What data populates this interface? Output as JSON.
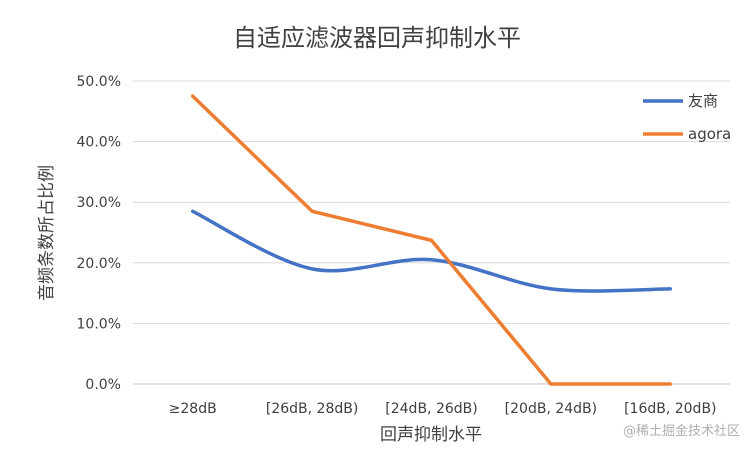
{
  "chart_data": {
    "type": "line",
    "title": "自适应滤波器回声抑制水平",
    "xlabel": "回声抑制水平",
    "ylabel": "音频条数所占比例",
    "categories": [
      "≥28dB",
      "[26dB, 28dB)",
      "[24dB, 26dB)",
      "[20dB, 24dB)",
      "[16dB, 20dB)"
    ],
    "yticks": [
      "0.0%",
      "10.0%",
      "20.0%",
      "30.0%",
      "40.0%",
      "50.0%"
    ],
    "ylim": [
      0,
      50
    ],
    "grid": true,
    "legend_position": "top-right",
    "series": [
      {
        "name": "友商",
        "values": [
          28.5,
          19.0,
          20.5,
          15.7,
          15.7
        ],
        "color": "#4472C4",
        "smooth": true
      },
      {
        "name": "agora",
        "values": [
          47.5,
          28.5,
          23.7,
          0.0,
          0.0
        ],
        "color": "#ED7D31",
        "smooth": false
      }
    ]
  },
  "watermark": "@稀土掘金技术社区"
}
